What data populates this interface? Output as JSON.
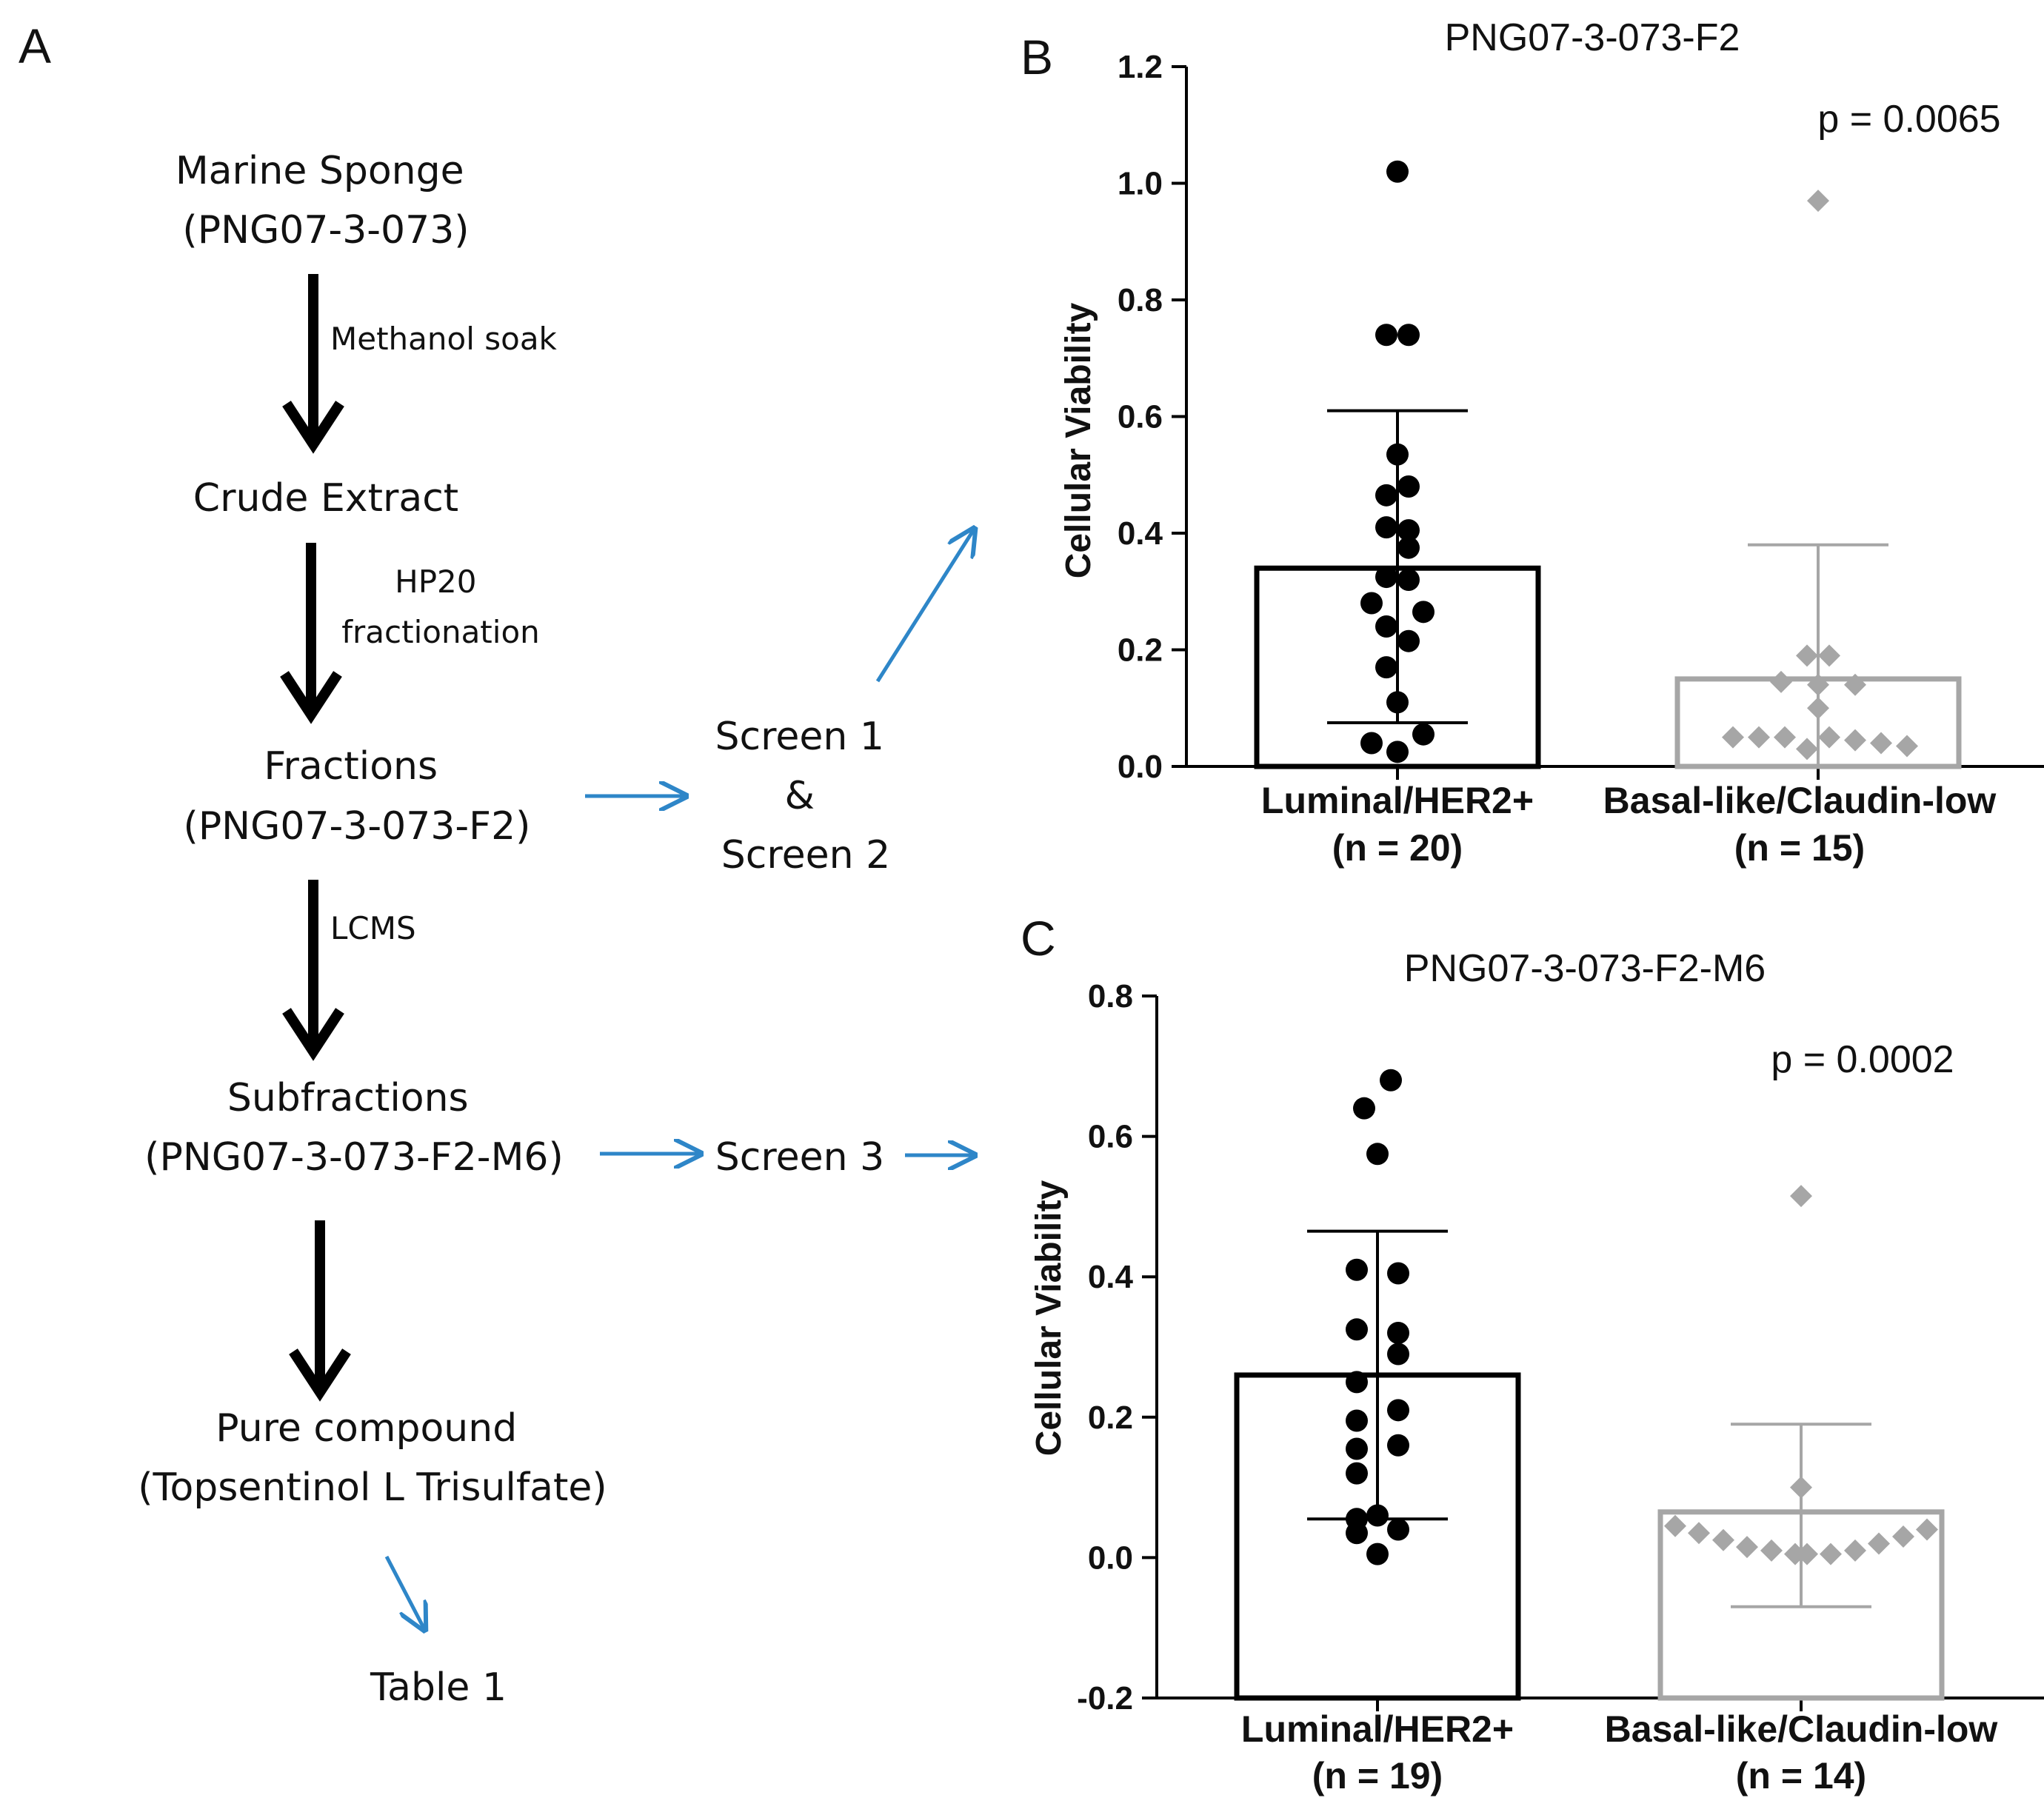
{
  "panel_a": {
    "letter": "A",
    "steps": {
      "sponge": [
        "Marine Sponge",
        "(PNG07-3-073)"
      ],
      "crude": [
        "Crude Extract"
      ],
      "fractions": [
        "Fractions",
        "(PNG07-3-073-F2)"
      ],
      "subfractions": [
        "Subfractions",
        "(PNG07-3-073-F2-M6)"
      ],
      "pure": [
        "Pure compound",
        "(Topsentinol L Trisulfate)"
      ],
      "table": [
        "Table 1"
      ]
    },
    "arrow_labels": {
      "methanol": [
        "Methanol soak"
      ],
      "hp20": [
        "HP20",
        "fractionation"
      ],
      "lcms": [
        "LCMS"
      ]
    },
    "screens": {
      "screen12": [
        "Screen 1",
        "&",
        "Screen 2"
      ],
      "screen3": [
        "Screen 3"
      ]
    },
    "colors": {
      "arrow_main": "#000000",
      "arrow_link": "#2e86c8"
    }
  },
  "chart_data": [
    {
      "panel": "B",
      "type": "bar",
      "title": "PNG07-3-073-F2",
      "ylabel": "Cellular Viability",
      "xlabel": "",
      "ylim": [
        0.0,
        1.2
      ],
      "yticks": [
        "0.0",
        "0.2",
        "0.4",
        "0.6",
        "0.8",
        "1.0",
        "1.2"
      ],
      "annotation": "p = 0.0065",
      "categories": [
        {
          "name": "Luminal/HER2+",
          "n_label": "(n = 20)",
          "mean": 0.34,
          "err_low": 0.075,
          "err_high": 0.61,
          "color": "#000000",
          "marker": "circle",
          "points": [
            1.02,
            0.74,
            0.74,
            0.535,
            0.48,
            0.465,
            0.41,
            0.405,
            0.375,
            0.325,
            0.32,
            0.28,
            0.265,
            0.24,
            0.215,
            0.17,
            0.11,
            0.055,
            0.04,
            0.025
          ]
        },
        {
          "name": "Basal-like/Claudin-low",
          "n_label": "(n = 15)",
          "mean": 0.15,
          "err_low": 0.0,
          "err_high": 0.38,
          "color": "#a6a6a6",
          "marker": "diamond",
          "points": [
            0.97,
            0.19,
            0.19,
            0.145,
            0.14,
            0.14,
            0.1,
            0.05,
            0.05,
            0.05,
            0.05,
            0.045,
            0.04,
            0.035,
            0.03
          ]
        }
      ]
    },
    {
      "panel": "C",
      "type": "bar",
      "title": "PNG07-3-073-F2-M6",
      "ylabel": "Cellular Viability",
      "xlabel": "",
      "ylim": [
        -0.2,
        0.8
      ],
      "yticks": [
        "-0.2",
        "0.0",
        "0.2",
        "0.4",
        "0.6",
        "0.8"
      ],
      "annotation": "p = 0.0002",
      "categories": [
        {
          "name": "Luminal/HER2+",
          "n_label": "(n = 19)",
          "mean": 0.26,
          "err_low": 0.055,
          "err_high": 0.465,
          "color": "#000000",
          "marker": "circle",
          "points": [
            0.68,
            0.64,
            0.575,
            0.41,
            0.405,
            0.325,
            0.32,
            0.29,
            0.25,
            0.21,
            0.195,
            0.16,
            0.155,
            0.12,
            0.06,
            0.055,
            0.04,
            0.035,
            0.005
          ]
        },
        {
          "name": "Basal-like/Claudin-low",
          "n_label": "(n = 14)",
          "mean": 0.065,
          "err_low": -0.07,
          "err_high": 0.19,
          "color": "#a6a6a6",
          "marker": "diamond",
          "points": [
            0.515,
            0.1,
            0.045,
            0.04,
            0.035,
            0.03,
            0.025,
            0.02,
            0.015,
            0.01,
            0.01,
            0.005,
            0.005,
            0.005
          ]
        }
      ]
    }
  ]
}
